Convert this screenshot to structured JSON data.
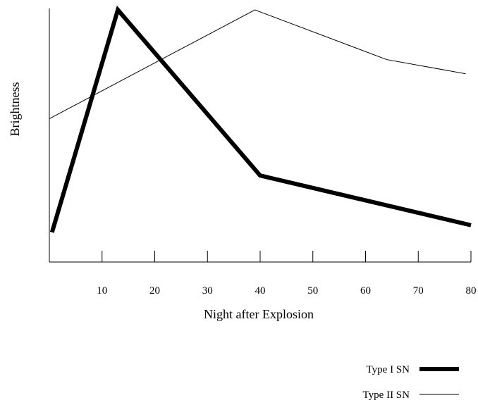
{
  "chart_data": {
    "type": "line",
    "title": "",
    "xlabel": "Night  after Explosion",
    "ylabel": "Brightness",
    "xlim": [
      0,
      80
    ],
    "ylim": [
      0,
      100
    ],
    "x_ticks": [
      10,
      20,
      30,
      40,
      50,
      60,
      70,
      80
    ],
    "y_ticks_shown": false,
    "grid": false,
    "legend_position": "bottom-right",
    "series": [
      {
        "name": "Type I SN",
        "style": "thick",
        "color": "#000000",
        "points": [
          [
            0.5,
            6
          ],
          [
            13,
            100
          ],
          [
            40,
            30
          ],
          [
            80,
            9
          ]
        ]
      },
      {
        "name": "Type II SN",
        "style": "thin",
        "color": "#000000",
        "points": [
          [
            0,
            54
          ],
          [
            39,
            100
          ],
          [
            64,
            79
          ],
          [
            79,
            73
          ]
        ]
      }
    ]
  }
}
